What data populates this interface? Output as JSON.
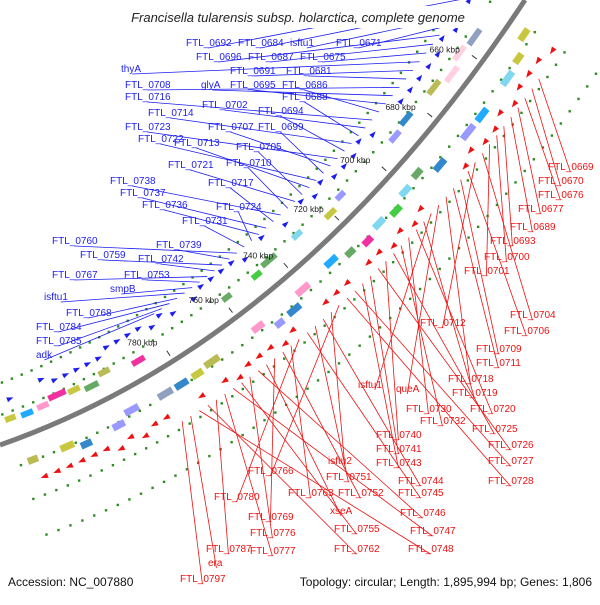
{
  "title": "Francisella tularensis subsp. holarctica, complete genome",
  "accession_text": "Accession: NC_007880",
  "summary_text": "Topology: circular; Length: 1,895,994 bp; Genes: 1,806",
  "colors": {
    "forward": "#1d1df0",
    "reverse": "#ee1111",
    "backbone": "#7f7f7f",
    "dots": "#2e8b22"
  },
  "ticks": [
    "660 kbp",
    "680 kbp",
    "700 kbp",
    "720 kbp",
    "740 kbp",
    "760 kbp",
    "780 kbp"
  ],
  "forward_labels": [
    "FTL_0692",
    "FTL_0684",
    "isftu1",
    "FTL_0671",
    "FTL_0696",
    "FTL_0687",
    "FTL_0675",
    "thyA",
    "FTL_0691",
    "FTL_0681",
    "FTL_0708",
    "glyA",
    "FTL_0695",
    "FTL_0686",
    "FTL_0716",
    "FTL_0702",
    "FTL_0688",
    "FTL_0714",
    "FTL_0694",
    "FTL_0723",
    "FTL_0707",
    "FTL_0699",
    "FTL_0722",
    "FTL_0713",
    "FTL_0705",
    "FTL_0721",
    "FTL_0710",
    "FTL_0738",
    "FTL_0717",
    "FTL_0737",
    "FTL_0736",
    "FTL_0724",
    "FTL_0731",
    "FTL_0760",
    "FTL_0739",
    "FTL_0759",
    "FTL_0742",
    "FTL_0767",
    "FTL_0753",
    "smpB",
    "isftu1",
    "FTL_0768",
    "FTL_0784",
    "FTL_0785",
    "adk"
  ],
  "reverse_labels": [
    "FTL_0669",
    "FTL_0670",
    "FTL_0676",
    "FTL_0677",
    "FTL_0689",
    "FTL_0693",
    "FTL_0700",
    "FTL_0701",
    "FTL_0704",
    "FTL_0712",
    "FTL_0706",
    "FTL_0709",
    "FTL_0711",
    "FTL_0718",
    "queA",
    "isftu1",
    "FTL_0719",
    "FTL_0720",
    "FTL_0730",
    "FTL_0732",
    "FTL_0725",
    "FTL_0740",
    "FTL_0726",
    "FTL_0741",
    "FTL_0743",
    "FTL_0727",
    "FTL_0728",
    "FTL_0766",
    "isftu2",
    "FTL_0744",
    "FTL_0751",
    "FTL_0745",
    "FTL_0780",
    "FTL_0763",
    "FTL_0752",
    "FTL_0769",
    "xseA",
    "FTL_0746",
    "FTL_0776",
    "FTL_0755",
    "FTL_0747",
    "FTL_0777",
    "FTL_0787",
    "FTL_0762",
    "FTL_0748",
    "era",
    "FTL_0797"
  ]
}
